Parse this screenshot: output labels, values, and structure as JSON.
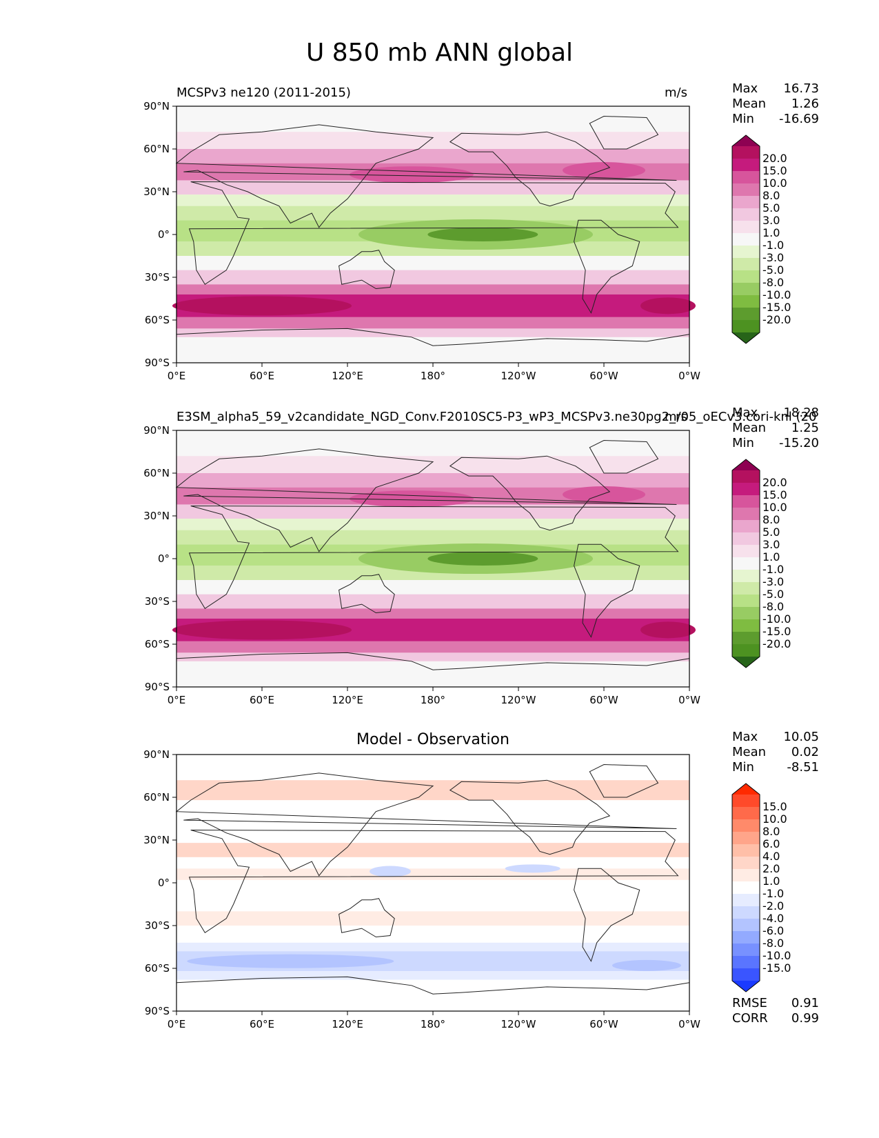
{
  "figure": {
    "title": "U 850 mb ANN global"
  },
  "chart_data": [
    {
      "type": "heatmap",
      "id": "test",
      "title_left": "MCSPv3 ne120 (2011-2015)",
      "title_center": "",
      "units": "m/s",
      "stats": {
        "Max": "16.73",
        "Mean": "1.26",
        "Min": "-16.69"
      },
      "xticks": [
        "0°E",
        "60°E",
        "120°E",
        "180°",
        "120°W",
        "60°W",
        "0°W"
      ],
      "yticks": [
        "90°N",
        "60°N",
        "30°N",
        "0°",
        "30°S",
        "60°S",
        "90°S"
      ],
      "xlim": [
        0,
        360
      ],
      "ylim": [
        -90,
        90
      ],
      "colorbar": {
        "labels": [
          "20.0",
          "15.0",
          "10.0",
          "8.0",
          "5.0",
          "3.0",
          "1.0",
          "-1.0",
          "-3.0",
          "-5.0",
          "-8.0",
          "-10.0",
          "-15.0",
          "-20.0"
        ],
        "colors": [
          "#8e0152",
          "#b4115f",
          "#c51b7d",
          "#d7559c",
          "#de77ae",
          "#eaa6cd",
          "#f1c8e0",
          "#f7e1ec",
          "#f7f7f7",
          "#e6f5d0",
          "#cfeaa8",
          "#b8e186",
          "#98cc63",
          "#7fbc41",
          "#5d9c2e",
          "#4d9221",
          "#276419"
        ]
      }
    },
    {
      "type": "heatmap",
      "id": "reference",
      "title_left": "E3SM_alpha5_59_v2candidate_NGD_Conv.F2010SC5-P3_wP3_MCSPv3.ne30pg2_r05_oECv3.cori-knl (20",
      "title_center": "",
      "units": "m/s",
      "stats": {
        "Max": "18.28",
        "Mean": "1.25",
        "Min": "-15.20"
      },
      "xticks": [
        "0°E",
        "60°E",
        "120°E",
        "180°",
        "120°W",
        "60°W",
        "0°W"
      ],
      "yticks": [
        "90°N",
        "60°N",
        "30°N",
        "0°",
        "30°S",
        "60°S",
        "90°S"
      ],
      "xlim": [
        0,
        360
      ],
      "ylim": [
        -90,
        90
      ],
      "colorbar": {
        "labels": [
          "20.0",
          "15.0",
          "10.0",
          "8.0",
          "5.0",
          "3.0",
          "1.0",
          "-1.0",
          "-3.0",
          "-5.0",
          "-8.0",
          "-10.0",
          "-15.0",
          "-20.0"
        ],
        "colors": [
          "#8e0152",
          "#b4115f",
          "#c51b7d",
          "#d7559c",
          "#de77ae",
          "#eaa6cd",
          "#f1c8e0",
          "#f7e1ec",
          "#f7f7f7",
          "#e6f5d0",
          "#cfeaa8",
          "#b8e186",
          "#98cc63",
          "#7fbc41",
          "#5d9c2e",
          "#4d9221",
          "#276419"
        ]
      }
    },
    {
      "type": "heatmap",
      "id": "difference",
      "title_left": "",
      "title_center": "Model - Observation",
      "units": "",
      "stats": {
        "Max": "10.05",
        "Mean": "0.02",
        "Min": "-8.51"
      },
      "metrics": {
        "RMSE": "0.91",
        "CORR": "0.99"
      },
      "xticks": [
        "0°E",
        "60°E",
        "120°E",
        "180°",
        "120°W",
        "60°W",
        "0°W"
      ],
      "yticks": [
        "90°N",
        "60°N",
        "30°N",
        "0°",
        "30°S",
        "60°S",
        "90°S"
      ],
      "xlim": [
        0,
        360
      ],
      "ylim": [
        -90,
        90
      ],
      "colorbar": {
        "labels": [
          "15.0",
          "10.0",
          "8.0",
          "6.0",
          "4.0",
          "2.0",
          "1.0",
          "-1.0",
          "-2.0",
          "-4.0",
          "-6.0",
          "-8.0",
          "-10.0",
          "-15.0"
        ],
        "colors": [
          "#ff2a00",
          "#ff4a2a",
          "#ff6a4a",
          "#ff8a6a",
          "#ffa58a",
          "#ffbfa8",
          "#ffd6c8",
          "#ffecE4",
          "#ffffff",
          "#e6ecff",
          "#cdd9ff",
          "#b3c4ff",
          "#93aaff",
          "#7891ff",
          "#5a75ff",
          "#3a55ff",
          "#1a3aff"
        ]
      }
    }
  ]
}
